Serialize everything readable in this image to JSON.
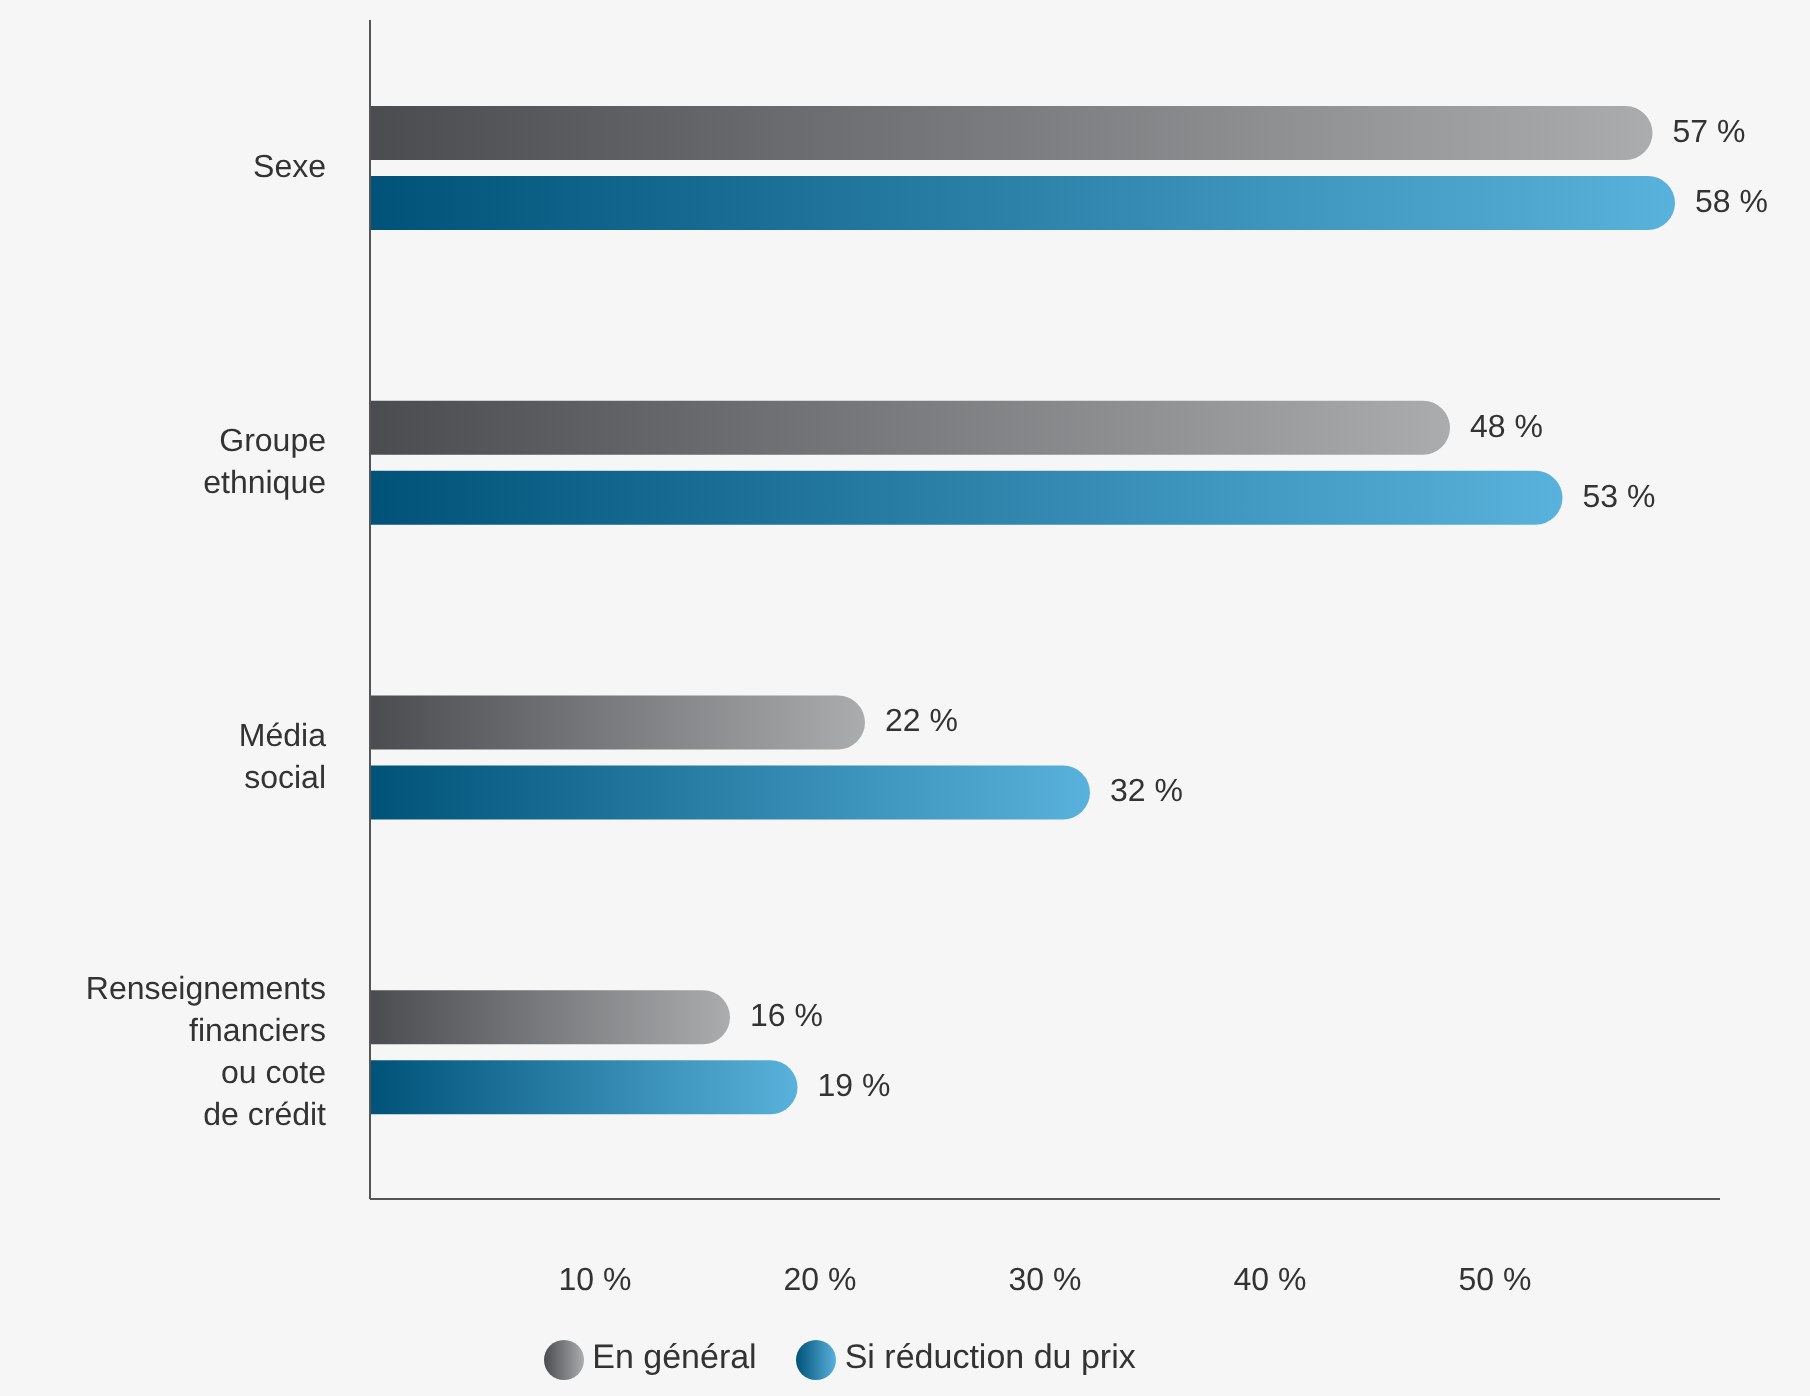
{
  "chart_data": {
    "type": "bar",
    "orientation": "horizontal",
    "categories": [
      "Sexe",
      "Groupe ethnique",
      "Média social",
      "Renseignements financiers ou cote de crédit"
    ],
    "series": [
      {
        "name": "En général",
        "color": "#7d7f83",
        "values": [
          57,
          48,
          22,
          16
        ],
        "value_labels": [
          "57 %",
          "48 %",
          "22 %",
          "16 %"
        ]
      },
      {
        "name": "Si réduction du prix",
        "color": "#0088c8",
        "values": [
          58,
          53,
          32,
          19
        ],
        "value_labels": [
          "58 %",
          "53 %",
          "32 %",
          "19 %"
        ]
      }
    ],
    "xlim": [
      0,
      60
    ],
    "xticks": [
      {
        "value": 10,
        "label": "10 %"
      },
      {
        "value": 20,
        "label": "20 %"
      },
      {
        "value": 30,
        "label": "30 %"
      },
      {
        "value": 40,
        "label": "40 %"
      },
      {
        "value": 50,
        "label": "50 %"
      }
    ],
    "grid": false,
    "legend": "bottom"
  }
}
